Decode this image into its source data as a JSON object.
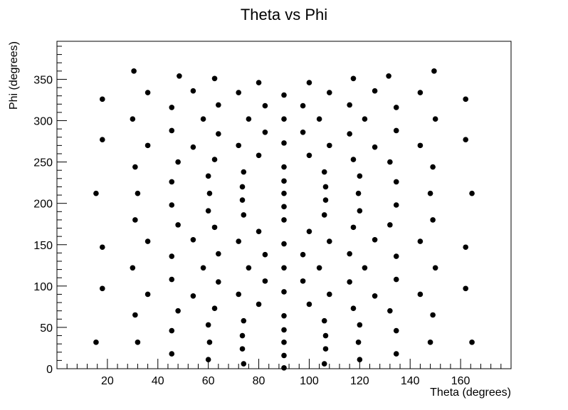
{
  "chart_data": {
    "type": "scatter",
    "title": "Theta vs Phi",
    "xlabel": "Theta (degrees)",
    "ylabel": "Phi (degrees)",
    "xlim": [
      0,
      180
    ],
    "ylim": [
      0,
      396
    ],
    "xticks": [
      20,
      40,
      60,
      80,
      100,
      120,
      140,
      160
    ],
    "yticks": [
      0,
      50,
      100,
      150,
      200,
      250,
      300,
      350
    ],
    "grid": false,
    "marker_color": "#000000",
    "points": [
      [
        15.5,
        32
      ],
      [
        15.5,
        212
      ],
      [
        18,
        97
      ],
      [
        18,
        147
      ],
      [
        18,
        277
      ],
      [
        18,
        326
      ],
      [
        30,
        122
      ],
      [
        30,
        302
      ],
      [
        30.5,
        360
      ],
      [
        31,
        65
      ],
      [
        31,
        180
      ],
      [
        31,
        244
      ],
      [
        32,
        32
      ],
      [
        32,
        212
      ],
      [
        36,
        90
      ],
      [
        36,
        154
      ],
      [
        36,
        270
      ],
      [
        36,
        334
      ],
      [
        45.5,
        18
      ],
      [
        45.5,
        46
      ],
      [
        45.5,
        108
      ],
      [
        45.5,
        136
      ],
      [
        45.5,
        198
      ],
      [
        45.5,
        226
      ],
      [
        45.5,
        288
      ],
      [
        45.5,
        316
      ],
      [
        48,
        70
      ],
      [
        48,
        174
      ],
      [
        48,
        250
      ],
      [
        48.5,
        354
      ],
      [
        54,
        88
      ],
      [
        54,
        156
      ],
      [
        54,
        268
      ],
      [
        54,
        336
      ],
      [
        58,
        122
      ],
      [
        58,
        302
      ],
      [
        60,
        11
      ],
      [
        60,
        53
      ],
      [
        60,
        191
      ],
      [
        60,
        233
      ],
      [
        60.5,
        32
      ],
      [
        60.5,
        212
      ],
      [
        62.5,
        73
      ],
      [
        62.5,
        171
      ],
      [
        62.5,
        253
      ],
      [
        62.5,
        351
      ],
      [
        64,
        105
      ],
      [
        64,
        139
      ],
      [
        64,
        284
      ],
      [
        64,
        319
      ],
      [
        72,
        90
      ],
      [
        72,
        154
      ],
      [
        72,
        270
      ],
      [
        72,
        334
      ],
      [
        73.5,
        24
      ],
      [
        73.5,
        40
      ],
      [
        73.5,
        204
      ],
      [
        73.5,
        220
      ],
      [
        74,
        6
      ],
      [
        74,
        58
      ],
      [
        74,
        186
      ],
      [
        74,
        238
      ],
      [
        76,
        122
      ],
      [
        76,
        302
      ],
      [
        80,
        78
      ],
      [
        80,
        166
      ],
      [
        80,
        258
      ],
      [
        80,
        346
      ],
      [
        82.5,
        106
      ],
      [
        82.5,
        138
      ],
      [
        82.5,
        286
      ],
      [
        82.5,
        318
      ],
      [
        90,
        1
      ],
      [
        90,
        16
      ],
      [
        90,
        32
      ],
      [
        90,
        47
      ],
      [
        90,
        64
      ],
      [
        90,
        93
      ],
      [
        90,
        122
      ],
      [
        90,
        151
      ],
      [
        90,
        180
      ],
      [
        90,
        196
      ],
      [
        90,
        212
      ],
      [
        90,
        227
      ],
      [
        90,
        244
      ],
      [
        90,
        273
      ],
      [
        90,
        302
      ],
      [
        90,
        331
      ],
      [
        97.5,
        106
      ],
      [
        97.5,
        138
      ],
      [
        97.5,
        286
      ],
      [
        97.5,
        318
      ],
      [
        100,
        78
      ],
      [
        100,
        166
      ],
      [
        100,
        258
      ],
      [
        100,
        346
      ],
      [
        104,
        122
      ],
      [
        104,
        302
      ],
      [
        106,
        6
      ],
      [
        106,
        58
      ],
      [
        106,
        186
      ],
      [
        106,
        238
      ],
      [
        106.5,
        24
      ],
      [
        106.5,
        40
      ],
      [
        106.5,
        204
      ],
      [
        106.5,
        220
      ],
      [
        108,
        90
      ],
      [
        108,
        154
      ],
      [
        108,
        270
      ],
      [
        108,
        334
      ],
      [
        116,
        105
      ],
      [
        116,
        139
      ],
      [
        116,
        284
      ],
      [
        116,
        319
      ],
      [
        117.5,
        73
      ],
      [
        117.5,
        171
      ],
      [
        117.5,
        253
      ],
      [
        117.5,
        351
      ],
      [
        119.5,
        32
      ],
      [
        119.5,
        212
      ],
      [
        120,
        11
      ],
      [
        120,
        53
      ],
      [
        120,
        191
      ],
      [
        120,
        233
      ],
      [
        122,
        122
      ],
      [
        122,
        302
      ],
      [
        126,
        88
      ],
      [
        126,
        156
      ],
      [
        126,
        268
      ],
      [
        126,
        336
      ],
      [
        132,
        70
      ],
      [
        132,
        174
      ],
      [
        132,
        250
      ],
      [
        131.5,
        354
      ],
      [
        134.5,
        18
      ],
      [
        134.5,
        46
      ],
      [
        134.5,
        108
      ],
      [
        134.5,
        136
      ],
      [
        134.5,
        198
      ],
      [
        134.5,
        226
      ],
      [
        134.5,
        288
      ],
      [
        134.5,
        316
      ],
      [
        144,
        90
      ],
      [
        144,
        154
      ],
      [
        144,
        270
      ],
      [
        144,
        334
      ],
      [
        148,
        32
      ],
      [
        148,
        212
      ],
      [
        149,
        65
      ],
      [
        149,
        180
      ],
      [
        149,
        244
      ],
      [
        150,
        122
      ],
      [
        150,
        302
      ],
      [
        149.5,
        360
      ],
      [
        162,
        97
      ],
      [
        162,
        147
      ],
      [
        162,
        277
      ],
      [
        162,
        326
      ],
      [
        164.5,
        32
      ],
      [
        164.5,
        212
      ]
    ]
  }
}
